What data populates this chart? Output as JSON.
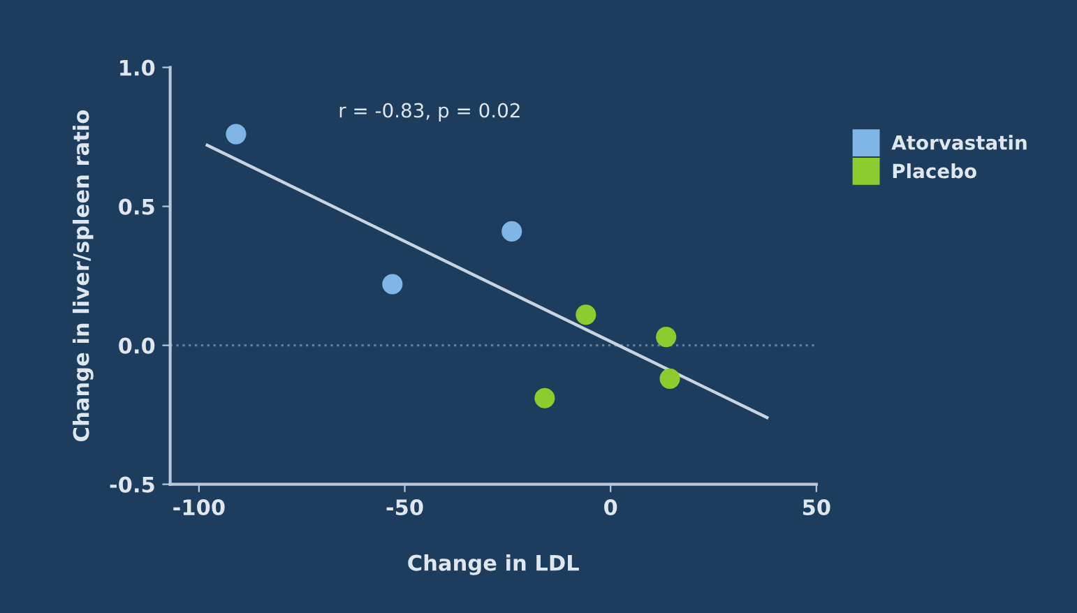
{
  "chart_data": {
    "type": "scatter",
    "xlabel": "Change in LDL",
    "ylabel": "Change in liver/spleen ratio",
    "xlim": [
      -107,
      50
    ],
    "ylim": [
      -0.5,
      1.0
    ],
    "xticks": [
      -100,
      -50,
      0,
      50
    ],
    "yticks": [
      -0.5,
      {
        "value": 0,
        "label": "0.0"
      },
      0.5,
      {
        "value": 1,
        "label": "1.0"
      }
    ],
    "series": [
      {
        "name": "Atorvastatin",
        "color": "#7fb6e6",
        "x": [
          -91,
          -53,
          -24
        ],
        "values": [
          0.76,
          0.22,
          0.41
        ]
      },
      {
        "name": "Placebo",
        "color": "#8ccc2e",
        "x": [
          -16,
          -6,
          13.5,
          14.4
        ],
        "values": [
          -0.19,
          0.11,
          0.03,
          -0.12
        ]
      },
      {
        "type": "line",
        "marker": "none",
        "color": "#c8d4e0",
        "x": [
          -98,
          38
        ],
        "values": [
          0.72,
          -0.26
        ]
      }
    ],
    "ref_lines": [
      {
        "axis": "y",
        "value": 0,
        "color": "#5f7f9c",
        "line_style": "dotted"
      }
    ],
    "annotations": [
      "r = -0.83, p = 0.02"
    ],
    "legend": "right",
    "marker": "circle",
    "grid": false
  }
}
